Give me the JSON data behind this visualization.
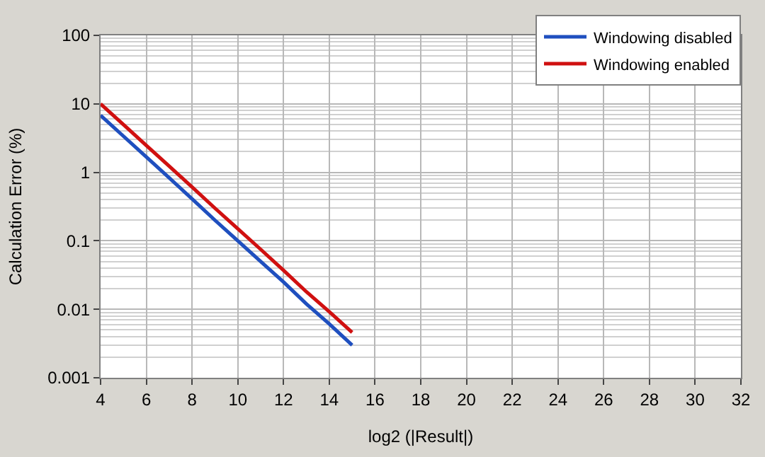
{
  "chart_data": {
    "type": "line",
    "xlabel": "log2 (|Result|)",
    "ylabel": "Calculation Error (%)",
    "log": "y",
    "grid": true,
    "legend": "top right",
    "marker": "none",
    "line_style": "solid",
    "x": [
      4,
      5,
      6,
      7,
      8,
      9,
      10,
      11,
      12,
      13,
      14,
      15
    ],
    "xlim": [
      4,
      32
    ],
    "xticks": [
      4,
      6,
      8,
      10,
      12,
      14,
      16,
      18,
      20,
      22,
      24,
      26,
      28,
      30,
      32
    ],
    "ylim": [
      0.001,
      100
    ],
    "yticks": [
      0.001,
      0.01,
      0.1,
      1,
      10,
      100
    ],
    "series": [
      {
        "name": "Windowing disabled",
        "color": "#1f4fbf",
        "values": [
          6.8,
          3.37,
          1.68,
          0.83,
          0.41,
          0.2,
          0.1,
          0.05,
          0.025,
          0.012,
          0.0061,
          0.003
        ]
      },
      {
        "name": "Windowing enabled",
        "color": "#d01010",
        "values": [
          10,
          4.97,
          2.47,
          1.23,
          0.61,
          0.3,
          0.15,
          0.075,
          0.037,
          0.018,
          0.0092,
          0.0046
        ]
      }
    ]
  }
}
